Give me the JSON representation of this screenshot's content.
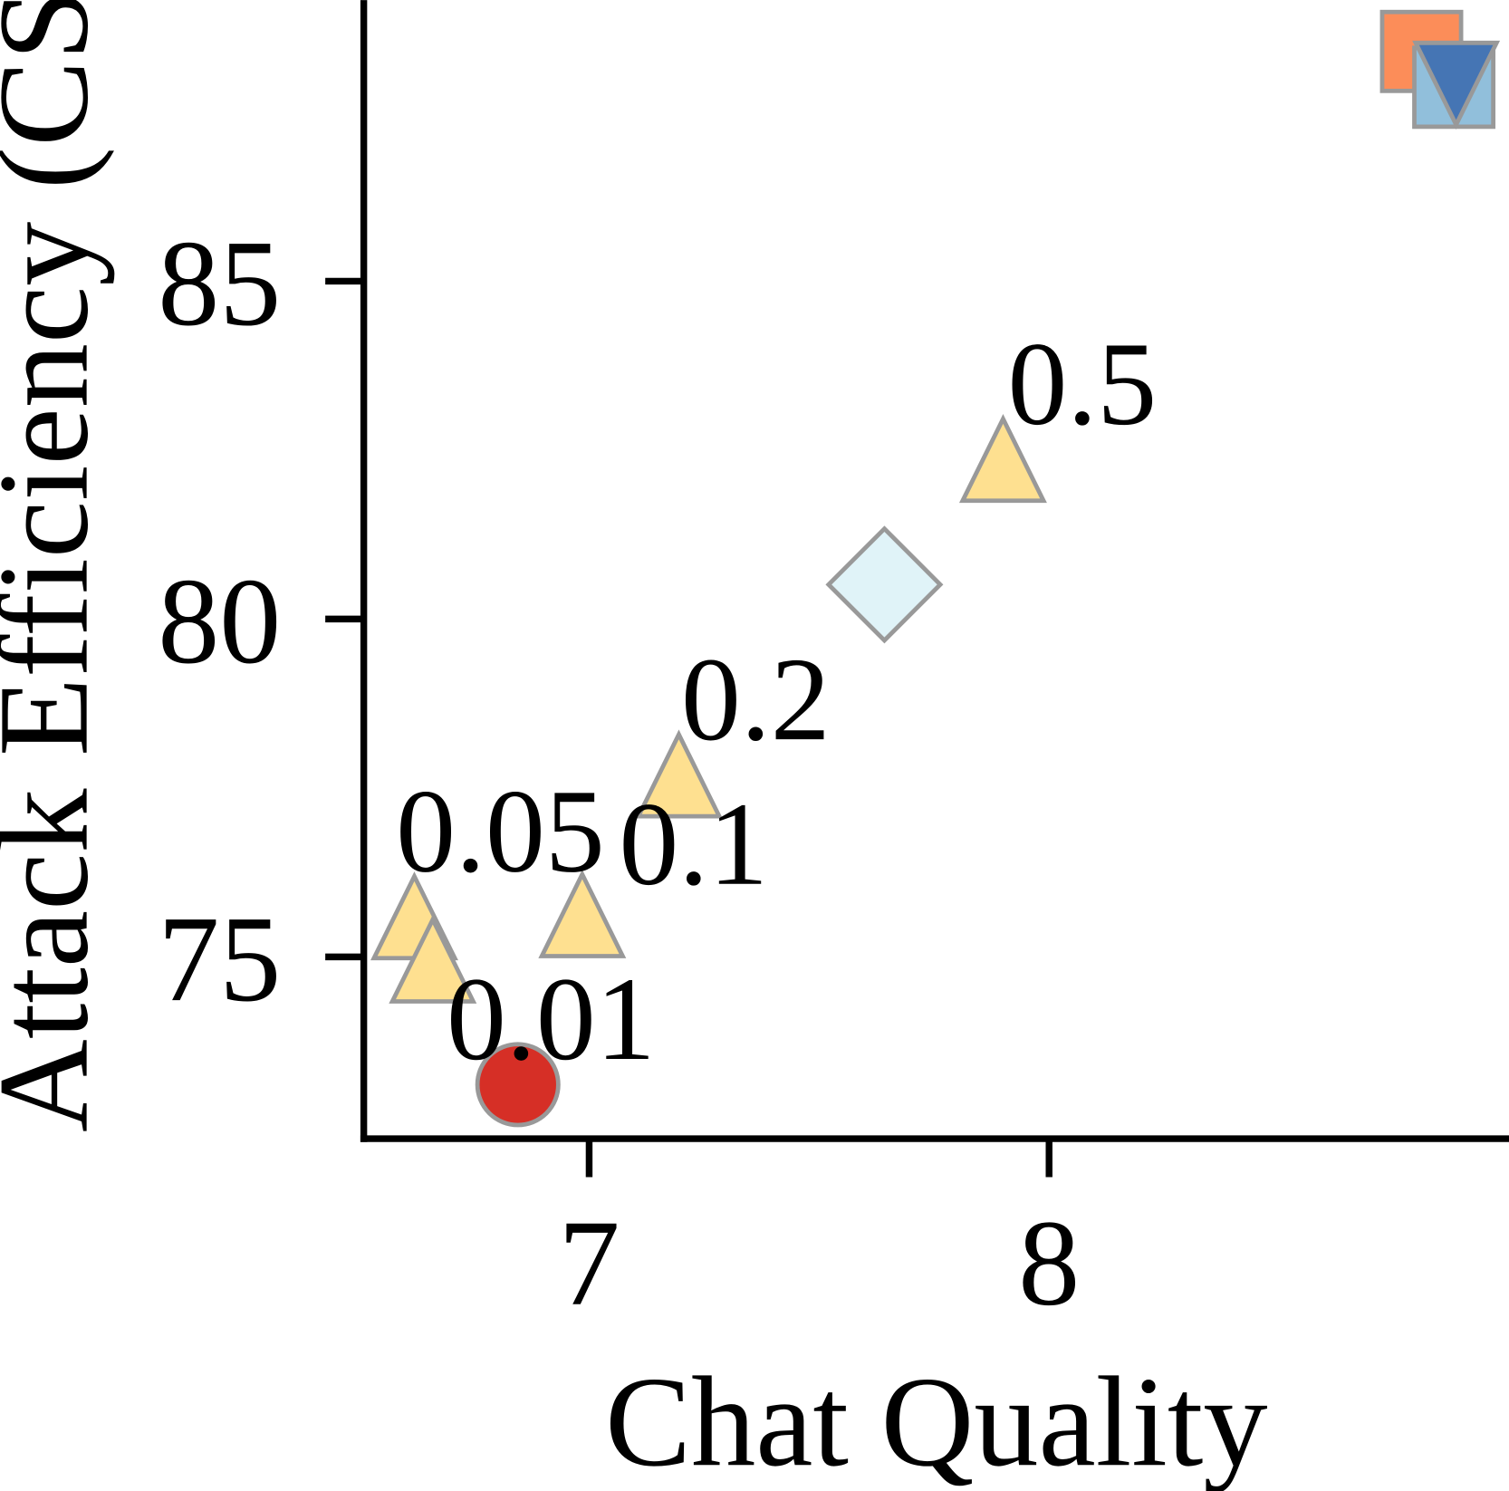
{
  "chart_data": {
    "type": "scatter",
    "x_label": "Chat Quality",
    "y_label": "Attack Efficiency (CS)",
    "xlim": [
      6.51,
      9.0
    ],
    "ylim": [
      72.31,
      89.16
    ],
    "xticks": [
      7,
      8
    ],
    "yticks": [
      75,
      80,
      85
    ],
    "series": [
      {
        "marker": "circle",
        "color": "#d62f26",
        "x": [
          6.845
        ],
        "values": [
          73.11
        ]
      },
      {
        "marker": "triangle-up",
        "color": "#fee090",
        "x": [
          6.62,
          6.66,
          6.985,
          7.195,
          7.9
        ],
        "values": [
          75.38,
          74.74,
          75.41,
          77.48,
          82.15
        ]
      },
      {
        "marker": "diamond",
        "color": "#e0f3f8",
        "x": [
          7.642
        ],
        "values": [
          80.51
        ]
      },
      {
        "marker": "square",
        "color": "#fc8d59",
        "x": [
          8.81
        ],
        "values": [
          88.4
        ]
      },
      {
        "marker": "square",
        "color": "#91bfdb",
        "x": [
          8.88
        ],
        "values": [
          87.87
        ]
      },
      {
        "marker": "triangle-down",
        "color": "#4575b4",
        "x": [
          8.885
        ],
        "values": [
          88.0
        ]
      }
    ],
    "annotations": [
      {
        "text": "0.05",
        "x": 6.58,
        "y": 76.27
      },
      {
        "text": "0.01",
        "x": 6.69,
        "y": 73.49
      },
      {
        "text": "0.1",
        "x": 7.065,
        "y": 76.08
      },
      {
        "text": "0.2",
        "x": 7.2,
        "y": 78.22
      },
      {
        "text": "0.5",
        "x": 7.91,
        "y": 82.89
      }
    ]
  }
}
